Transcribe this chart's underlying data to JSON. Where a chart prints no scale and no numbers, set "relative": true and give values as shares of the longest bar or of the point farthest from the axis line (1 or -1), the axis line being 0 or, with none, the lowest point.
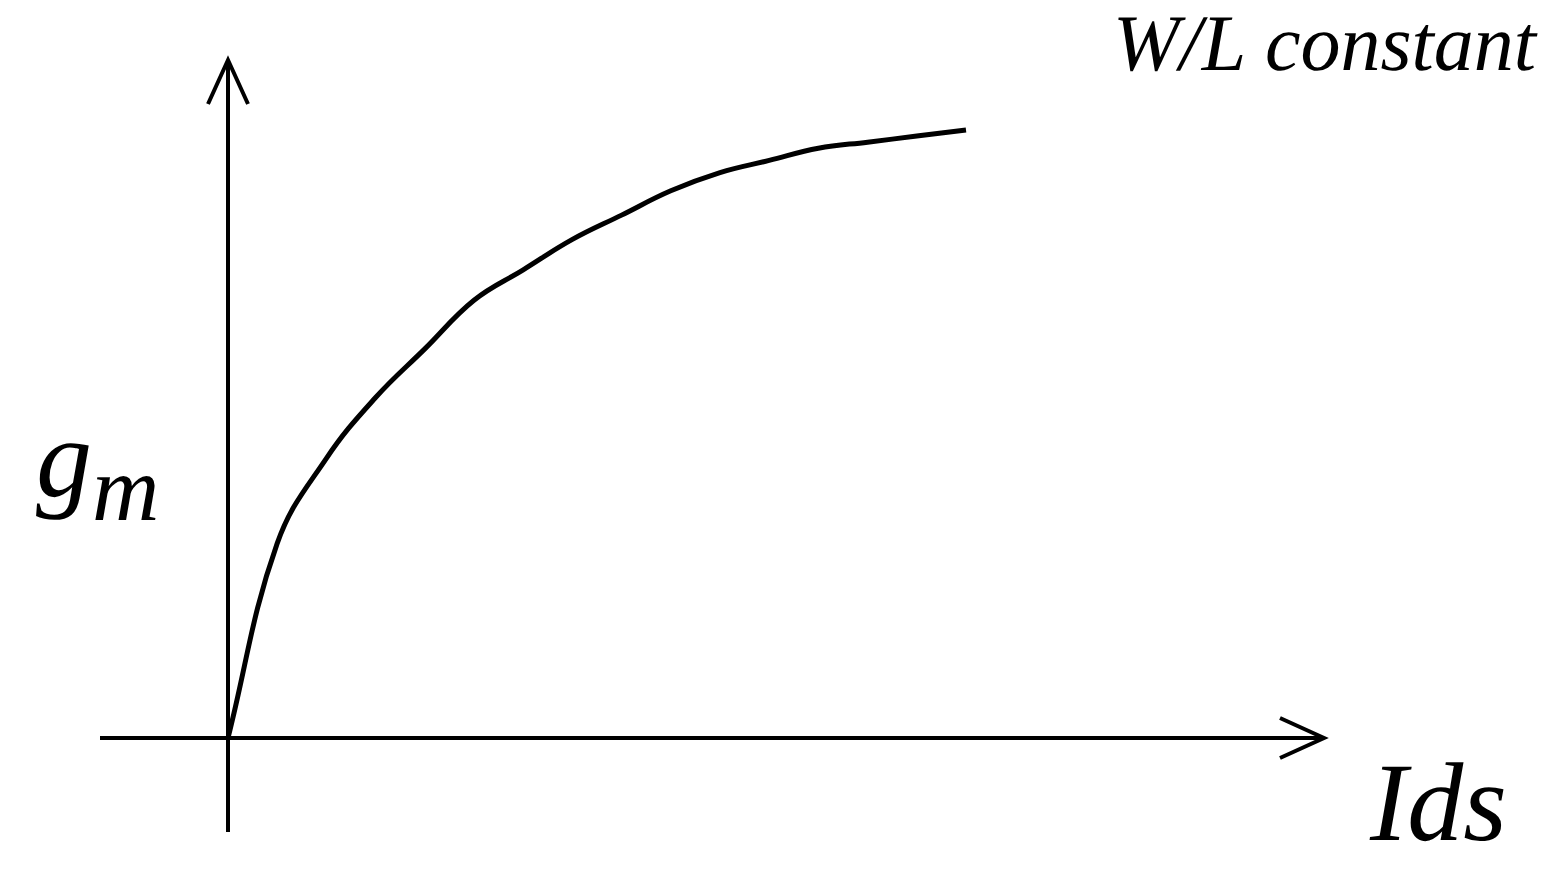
{
  "chart_data": {
    "type": "line",
    "relative": true,
    "xlabel": "Ids",
    "ylabel": "g$_{m}$",
    "annotations": [
      "W/L constant"
    ],
    "categories": [
      null,
      null,
      null,
      null,
      null,
      null,
      null,
      null,
      null,
      null,
      null,
      null,
      null,
      null,
      null,
      null
    ],
    "series": [
      {
        "color": "#000000",
        "values": [
          0,
          0.32,
          0.46,
          0.56,
          0.64,
          0.72,
          0.77,
          0.82,
          0.86,
          0.9,
          0.93,
          0.95,
          0.97,
          0.98,
          0.99,
          1
        ]
      }
    ],
    "marker": "none",
    "grid": false,
    "legend": false,
    "tick_labels": false
  }
}
